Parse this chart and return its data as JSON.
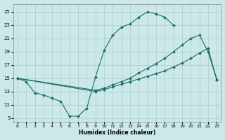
{
  "bg_color": "#cce8e8",
  "grid_color": "#aacccc",
  "line_color": "#1a6b6b",
  "xlabel": "Humidex (Indice chaleur)",
  "xlim": [
    -0.5,
    23.5
  ],
  "ylim": [
    8.5,
    26.2
  ],
  "xticks": [
    0,
    1,
    2,
    3,
    4,
    5,
    6,
    7,
    8,
    9,
    10,
    11,
    12,
    13,
    14,
    15,
    16,
    17,
    18,
    19,
    20,
    21,
    22,
    23
  ],
  "yticks": [
    9,
    11,
    13,
    15,
    17,
    19,
    21,
    23,
    25
  ],
  "curve1_x": [
    0,
    1,
    2,
    3,
    4,
    5,
    6,
    7,
    8,
    9,
    10,
    11,
    12,
    13,
    14,
    15,
    16,
    17,
    18
  ],
  "curve1_y": [
    15,
    14.5,
    12.8,
    12.5,
    12.0,
    11.5,
    9.3,
    9.3,
    10.5,
    15.2,
    19.2,
    21.5,
    22.7,
    23.2,
    24.2,
    25.0,
    24.7,
    24.2,
    23.0
  ],
  "curve2_x": [
    0,
    9,
    10,
    11,
    12,
    13,
    14,
    15,
    16,
    17,
    18,
    19,
    20,
    21,
    22,
    23
  ],
  "curve2_y": [
    15,
    13.2,
    13.5,
    14.0,
    14.5,
    15.0,
    15.8,
    16.5,
    17.2,
    18.0,
    19.0,
    20.0,
    21.0,
    21.5,
    19.0,
    14.8
  ],
  "curve3_x": [
    0,
    9,
    10,
    11,
    12,
    13,
    14,
    15,
    16,
    17,
    18,
    19,
    20,
    21,
    22,
    23
  ],
  "curve3_y": [
    15,
    13.0,
    13.3,
    13.7,
    14.1,
    14.5,
    14.9,
    15.3,
    15.7,
    16.1,
    16.7,
    17.3,
    18.0,
    18.8,
    19.5,
    14.8
  ]
}
